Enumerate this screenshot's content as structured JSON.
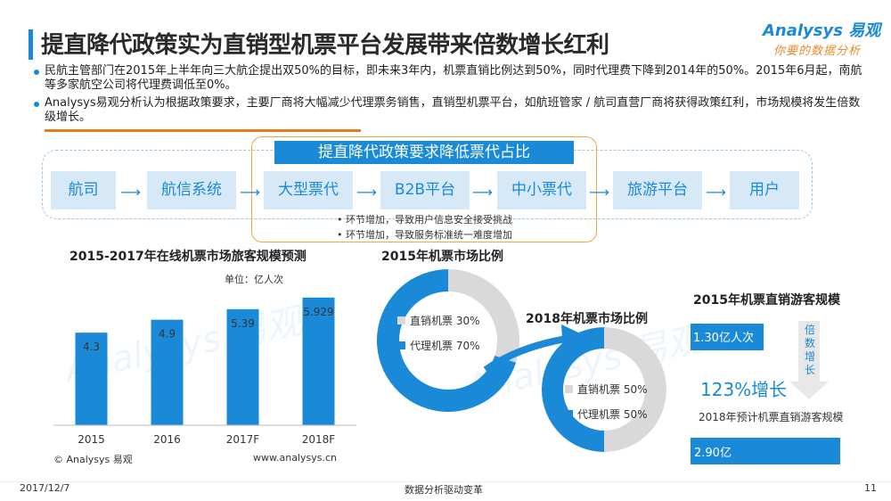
{
  "title": "提直降代政策实为直销型机票平台发展带来倍数增长红利",
  "logo": {
    "brand": "Analysys 易观",
    "tagline": "你要的数据分析"
  },
  "bullets": [
    "民航主管部门在2015年上半年向三大航企提出双50%的目标，即未来3年内，机票直销比例达到50%，同时代理费下降到2014年的50%。2015年6月起，南航等多家航空公司将代理费调低至0%。",
    "Analysys易观分析认为根据政策要求，主要厂商将大幅减少代理票务销售，直销型机票平台，如航班管家 / 航司直营厂商将获得政策红利，市场规模将发生倍数级增长。"
  ],
  "flow": {
    "policy_title": "提直降代政策要求降低票代占比",
    "nodes": [
      "航司",
      "航信系统",
      "大型票代",
      "B2B平台",
      "中小票代",
      "旅游平台",
      "用户"
    ],
    "notes": [
      "• 环节增加，导致用户信息安全接受挑战",
      "• 环节增加，导致服务标准统一难度增加"
    ]
  },
  "bar_chart_meta": {
    "source_left": "© Analysys 易观",
    "source_right": "www.analysys.cn"
  },
  "pie_2015_title": "2015年机票市场比例",
  "pie_2018_title": "2018年机票市场比例",
  "direct_sales": {
    "title_2015": "2015年机票直销游客规模",
    "value_2015": "1.30亿人次",
    "growth_vertical": [
      "倍",
      "数",
      "增",
      "长"
    ],
    "growth": "123%增长",
    "title_2018": "2018年预计机票直销游客规模",
    "value_2018": "2.90亿"
  },
  "footer": {
    "date": "2017/12/7",
    "center": "数据分析驱动变革",
    "page": "11"
  },
  "colors": {
    "accent": "#1a8ad8",
    "grey": "#d9d9d9",
    "orange": "#e87b1e"
  },
  "chart_data": [
    {
      "type": "bar",
      "title": "2015-2017年在线机票市场旅客规模预测",
      "subtitle": "单位：亿人次",
      "categories": [
        "2015",
        "2016",
        "2017F",
        "2018F"
      ],
      "values": [
        4.3,
        4.9,
        5.39,
        5.929
      ],
      "value_labels": [
        "4.3",
        "4.9",
        "5.39",
        "5.929"
      ],
      "ylim": [
        0,
        6.5
      ],
      "grid": false
    },
    {
      "type": "pie",
      "title": "2015年机票市场比例",
      "labels": [
        "直销机票",
        "代理机票"
      ],
      "values": [
        30,
        70
      ],
      "value_labels": [
        "30%",
        "70%"
      ],
      "colors": [
        "#d9d9d9",
        "#1a8ad8"
      ]
    },
    {
      "type": "pie",
      "title": "2018年机票市场比例",
      "labels": [
        "直销机票",
        "代理机票"
      ],
      "values": [
        50,
        50
      ],
      "value_labels": [
        "50%",
        "50%"
      ],
      "colors": [
        "#d9d9d9",
        "#1a8ad8"
      ]
    },
    {
      "type": "bar",
      "title": "2015年机票直销游客规模 / 2018年预计机票直销游客规模",
      "categories": [
        "2015",
        "2018"
      ],
      "values": [
        1.3,
        2.9
      ],
      "value_labels": [
        "1.30亿人次",
        "2.90亿"
      ]
    }
  ]
}
